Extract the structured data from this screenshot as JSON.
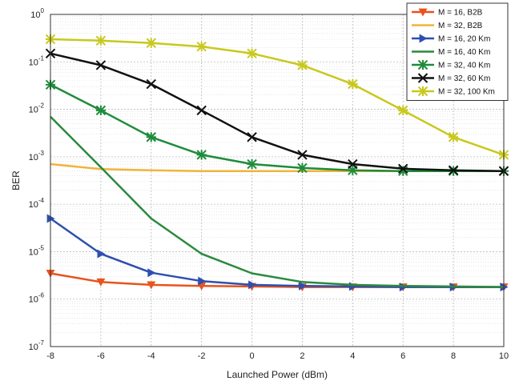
{
  "chart_data": {
    "type": "line",
    "xlabel": "Launched Power (dBm)",
    "ylabel": "BER",
    "x_scale": "linear",
    "y_scale": "log",
    "xlim": [
      -8,
      10
    ],
    "ylim": [
      1e-07,
      1
    ],
    "x_ticks": [
      -8,
      -6,
      -4,
      -2,
      0,
      2,
      4,
      6,
      8,
      10
    ],
    "x_tick_labels": [
      "-8",
      "-6",
      "-4",
      "-2",
      "0",
      "2",
      "4",
      "6",
      "8",
      "10"
    ],
    "y_tick_exponents": [
      0,
      -1,
      -2,
      -3,
      -4,
      -5,
      -6,
      -7
    ],
    "y_tick_base": "10",
    "grid": true,
    "legend_position": "top-right",
    "series": [
      {
        "name": "M = 16, B2B",
        "color": "#e8531e",
        "marker": "triangle-down",
        "x": [
          -8,
          -6,
          -4,
          -2,
          0,
          2,
          4,
          6,
          8,
          10
        ],
        "y": [
          3.5e-06,
          2.3e-06,
          2e-06,
          1.9e-06,
          1.85e-06,
          1.8e-06,
          1.8e-06,
          1.8e-06,
          1.8e-06,
          1.8e-06
        ]
      },
      {
        "name": "M = 32, B2B",
        "color": "#f0b43a",
        "marker": "none",
        "x": [
          -8,
          -6,
          -4,
          -2,
          0,
          2,
          4,
          6,
          8,
          10
        ],
        "y": [
          0.0007,
          0.00055,
          0.00052,
          0.0005,
          0.0005,
          0.0005,
          0.0005,
          0.0005,
          0.0005,
          0.0005
        ]
      },
      {
        "name": "M = 16, 20 Km",
        "color": "#2e4fb0",
        "marker": "triangle-right",
        "x": [
          -8,
          -6,
          -4,
          -2,
          0,
          2,
          4,
          6,
          8,
          10
        ],
        "y": [
          5e-05,
          9e-06,
          3.6e-06,
          2.4e-06,
          2e-06,
          1.9e-06,
          1.85e-06,
          1.8e-06,
          1.8e-06,
          1.8e-06
        ]
      },
      {
        "name": "M = 16, 40 Km",
        "color": "#2a8a3e",
        "marker": "none",
        "x": [
          -8,
          -6,
          -4,
          -2,
          0,
          2,
          4,
          6,
          8,
          10
        ],
        "y": [
          0.007,
          0.0006,
          5e-05,
          9e-06,
          3.5e-06,
          2.3e-06,
          2e-06,
          1.9e-06,
          1.85e-06,
          1.8e-06
        ]
      },
      {
        "name": "M = 32, 40 Km",
        "color": "#1e8c3a",
        "marker": "star",
        "x": [
          -8,
          -6,
          -4,
          -2,
          0,
          2,
          4,
          6,
          8,
          10
        ],
        "y": [
          0.033,
          0.0095,
          0.0026,
          0.0011,
          0.0007,
          0.00058,
          0.00052,
          0.0005,
          0.0005,
          0.0005
        ]
      },
      {
        "name": "M = 32, 60 Km",
        "color": "#111111",
        "marker": "x",
        "x": [
          -8,
          -6,
          -4,
          -2,
          0,
          2,
          4,
          6,
          8,
          10
        ],
        "y": [
          0.15,
          0.085,
          0.034,
          0.0095,
          0.0026,
          0.0011,
          0.0007,
          0.00056,
          0.00052,
          0.0005
        ]
      },
      {
        "name": "M = 32, 100 Km",
        "color": "#c8c81e",
        "marker": "star",
        "x": [
          -8,
          -6,
          -4,
          -2,
          0,
          2,
          4,
          6,
          8,
          10
        ],
        "y": [
          0.3,
          0.28,
          0.25,
          0.21,
          0.15,
          0.085,
          0.034,
          0.0095,
          0.0026,
          0.0011
        ]
      }
    ]
  }
}
